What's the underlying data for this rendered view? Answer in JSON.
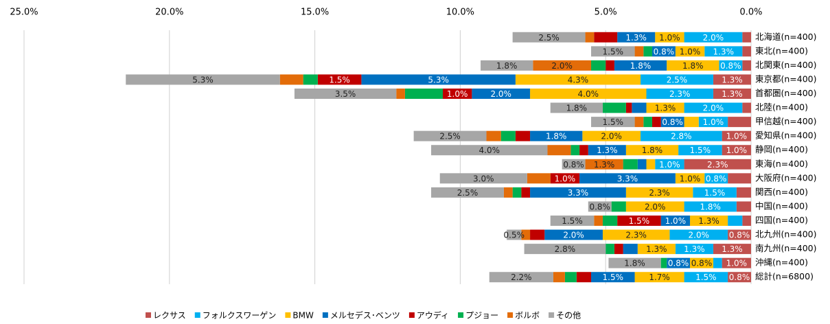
{
  "chart_data": {
    "type": "stacked-barh",
    "reversed": true,
    "categories": [
      "北海道(n=400)",
      "東北(n=400)",
      "北関東(n=400)",
      "東京都(n=400)",
      "首都圏(n=400)",
      "北陸(n=400)",
      "甲信越(n=400)",
      "愛知県(n=400)",
      "静岡(n=400)",
      "東海(n=400)",
      "大阪府(n=400)",
      "関西(n=400)",
      "中国(n=400)",
      "四国(n=400)",
      "北九州(n=400)",
      "南九州(n=400)",
      "沖縄(n=400)",
      "総計(n=6800)"
    ],
    "xlim": [
      0,
      25
    ],
    "xticks": [
      {
        "value": 25,
        "label": "25.0%"
      },
      {
        "value": 20,
        "label": "20.0%"
      },
      {
        "value": 15,
        "label": "15.0%"
      },
      {
        "value": 10,
        "label": "10.0%"
      },
      {
        "value": 5,
        "label": "5.0%"
      },
      {
        "value": 0,
        "label": "0.0%"
      }
    ],
    "grid": true,
    "legend": "bottom",
    "series": [
      {
        "name": "レクサス",
        "color": "#c0504d",
        "values": [
          0.3,
          0.3,
          0.3,
          1.3,
          1.3,
          0.3,
          0.8,
          1.0,
          1.0,
          2.3,
          0.8,
          0.5,
          0.5,
          0.3,
          0.8,
          1.3,
          1.0,
          0.8
        ],
        "value_labels": [
          null,
          null,
          null,
          "1.3%",
          "1.3%",
          null,
          null,
          "1.0%",
          "1.0%",
          "2.3%",
          null,
          null,
          null,
          null,
          "0.8%",
          "1.3%",
          "1.0%",
          "0.8%"
        ]
      },
      {
        "name": "フォルクスワーゲン",
        "color": "#00b0f0",
        "values": [
          2.0,
          1.3,
          0.8,
          2.5,
          2.3,
          2.0,
          1.0,
          2.8,
          1.5,
          1.0,
          0.8,
          1.5,
          1.8,
          0.5,
          2.0,
          1.3,
          0.3,
          1.5
        ],
        "value_labels": [
          "2.0%",
          "1.3%",
          "0.8%",
          "2.5%",
          "2.3%",
          "2.0%",
          "1.0%",
          "2.8%",
          "1.5%",
          "1.0%",
          "0.8%",
          "1.5%",
          "1.8%",
          null,
          "2.0%",
          "1.3%",
          null,
          "1.5%"
        ]
      },
      {
        "name": "BMW",
        "color": "#ffc000",
        "values": [
          1.0,
          1.0,
          1.8,
          4.3,
          4.0,
          1.3,
          0.5,
          2.0,
          1.8,
          0.3,
          1.0,
          2.3,
          2.0,
          1.3,
          2.3,
          1.3,
          0.8,
          1.7
        ],
        "value_labels": [
          "1.0%",
          "1.0%",
          "1.8%",
          "4.3%",
          "4.0%",
          "1.3%",
          null,
          "2.0%",
          "1.8%",
          null,
          "1.0%",
          "2.3%",
          "2.0%",
          "1.3%",
          "2.3%",
          "1.3%",
          "0.8%",
          "1.7%"
        ]
      },
      {
        "name": "メルセデス･ベンツ",
        "color": "#0070c0",
        "values": [
          1.3,
          0.8,
          1.8,
          5.3,
          2.0,
          0.5,
          0.8,
          1.8,
          1.3,
          0.3,
          3.3,
          3.3,
          0,
          1.0,
          2.0,
          0.5,
          0.8,
          1.5
        ],
        "value_labels": [
          "1.3%",
          "0.8%",
          "1.8%",
          "5.3%",
          "2.0%",
          null,
          "0.8%",
          "1.8%",
          "1.3%",
          null,
          "3.3%",
          "3.3%",
          null,
          "1.0%",
          "2.0%",
          null,
          "0.8%",
          "1.5%"
        ]
      },
      {
        "name": "アウディ",
        "color": "#c00000",
        "values": [
          0.8,
          0,
          0.3,
          1.5,
          1.0,
          0.2,
          0.3,
          0.5,
          0.3,
          0,
          1.0,
          0.3,
          0,
          1.5,
          0.5,
          0.3,
          0,
          0.5
        ],
        "value_labels": [
          null,
          null,
          null,
          "1.5%",
          "1.0%",
          null,
          null,
          null,
          null,
          null,
          "1.0%",
          null,
          null,
          "1.5%",
          null,
          null,
          null,
          null
        ]
      },
      {
        "name": "プジョー",
        "color": "#00b050",
        "values": [
          0,
          0.3,
          0.5,
          0.5,
          1.3,
          0.8,
          0.3,
          0.5,
          0.3,
          0.5,
          0,
          0.3,
          0.5,
          0.5,
          0,
          0.3,
          0.2,
          0.4
        ]
      },
      {
        "name": "ボルボ",
        "color": "#e36c09",
        "values": [
          0.3,
          0.3,
          2.0,
          0.8,
          0.3,
          0,
          0.3,
          0.5,
          0.8,
          1.3,
          0.8,
          0.3,
          0,
          0.3,
          0.3,
          0,
          0,
          0.4
        ],
        "value_labels": [
          null,
          null,
          "2.0%",
          null,
          null,
          null,
          null,
          null,
          null,
          "1.3%",
          null,
          null,
          null,
          null,
          null,
          null,
          null,
          null
        ]
      },
      {
        "name": "その他",
        "color": "#a6a6a6",
        "values": [
          2.5,
          1.5,
          1.8,
          5.3,
          3.5,
          1.8,
          1.5,
          2.5,
          4.0,
          0.8,
          3.0,
          2.5,
          0.8,
          1.5,
          0.5,
          2.8,
          1.8,
          2.2
        ],
        "value_labels": [
          "2.5%",
          "1.5%",
          "1.8%",
          "5.3%",
          "3.5%",
          "1.8%",
          "1.5%",
          "2.5%",
          "4.0%",
          "0.8%",
          "3.0%",
          "2.5%",
          "0.8%",
          "1.5%",
          "0.5%",
          "2.8%",
          "1.8%",
          "2.2%"
        ]
      }
    ]
  }
}
